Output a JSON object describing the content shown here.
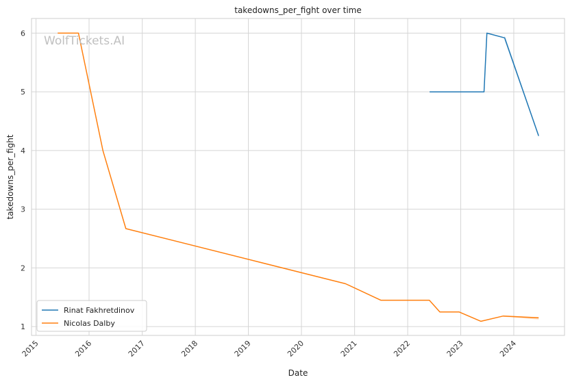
{
  "chart_data": {
    "type": "line",
    "title": "takedowns_per_fight over time",
    "xlabel": "Date",
    "ylabel": "takedowns_per_fight",
    "x_ticks": [
      "2015",
      "2016",
      "2017",
      "2018",
      "2019",
      "2020",
      "2021",
      "2022",
      "2023",
      "2024"
    ],
    "y_ticks": [
      "1",
      "2",
      "3",
      "4",
      "5",
      "6"
    ],
    "xlim": [
      "2014-12-01",
      "2024-12-15"
    ],
    "ylim": [
      0.85,
      6.25
    ],
    "grid": true,
    "legend_position": "lower-left",
    "watermark": "WolfTickets.AI",
    "series": [
      {
        "name": "Rinat Fakhretdinov",
        "color": "#1f77b4",
        "points": [
          {
            "x": "2022-06-01",
            "y": 5.0
          },
          {
            "x": "2023-06-10",
            "y": 5.0
          },
          {
            "x": "2023-06-30",
            "y": 6.0
          },
          {
            "x": "2023-10-30",
            "y": 5.92
          },
          {
            "x": "2024-06-20",
            "y": 4.25
          }
        ]
      },
      {
        "name": "Nicolas Dalby",
        "color": "#ff7f0e",
        "points": [
          {
            "x": "2015-05-30",
            "y": 6.0
          },
          {
            "x": "2015-10-20",
            "y": 6.0
          },
          {
            "x": "2016-04-05",
            "y": 4.0
          },
          {
            "x": "2016-09-10",
            "y": 2.67
          },
          {
            "x": "2020-10-30",
            "y": 1.73
          },
          {
            "x": "2021-06-30",
            "y": 1.45
          },
          {
            "x": "2022-05-30",
            "y": 1.45
          },
          {
            "x": "2022-08-10",
            "y": 1.25
          },
          {
            "x": "2022-12-20",
            "y": 1.25
          },
          {
            "x": "2023-05-20",
            "y": 1.09
          },
          {
            "x": "2023-10-20",
            "y": 1.18
          },
          {
            "x": "2024-06-20",
            "y": 1.15
          }
        ]
      }
    ]
  }
}
